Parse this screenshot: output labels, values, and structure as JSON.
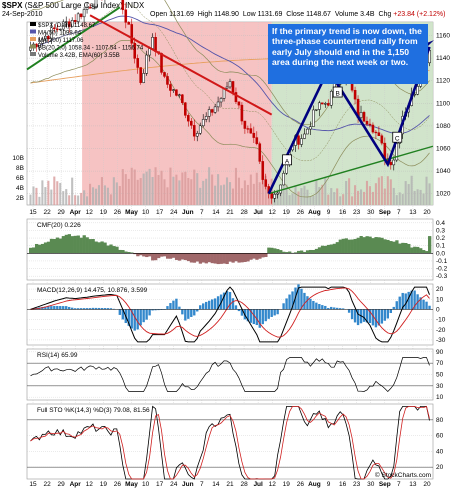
{
  "header": {
    "symbol": "$SPX",
    "name": "(S&P 500 Large Cap Index)",
    "exchange": "INDX",
    "date": "24-Sep-2010",
    "open_label": "Open",
    "open": "1131.69",
    "high_label": "High",
    "high": "1148.90",
    "low_label": "Low",
    "low": "1131.69",
    "close_label": "Close",
    "close": "1148.67",
    "volume_label": "Volume",
    "volume": "3.4B",
    "chg_label": "Chg",
    "chg": "+23.84 (+2.12%)"
  },
  "watermark": "© StockCharts.com",
  "annotation": "If the primary trend is now down, the three-phase countertrend rally from early July should end in the 1,150 area during the next week or two.",
  "legend": {
    "spx": "$SPX (Daily) 1148.67",
    "ma50": "MA(50) 1098.64",
    "ma200": "MA(200) 1117.06",
    "bb": "BB(20,2.0) 1058.34 - 1107.54 - 1156.74",
    "volume": "Volume 3.42B, EMA(60) 3.55B"
  },
  "wave_labels": [
    "A",
    "B",
    "C"
  ],
  "colors": {
    "up": "#000000",
    "down": "#c00000",
    "redzone": "#f5b8b8",
    "greenzone": "#c9dfc2",
    "trend": "#000080",
    "redline": "#d01818",
    "greenline": "#208020",
    "bb": "#8c8c5a",
    "ma200": "#e8a060",
    "ma50": "#5555aa",
    "cmf_pos": "#5a8a52",
    "cmf_neg": "#a0686a",
    "hist": "#3388cc",
    "annotation_bg": "#1f6fe0"
  },
  "chart_data": [
    {
      "type": "candlestick",
      "title": "$SPX (Daily)",
      "y_ticks": [
        1020,
        1040,
        1060,
        1080,
        1100,
        1120,
        1140,
        1160
      ],
      "ylim": [
        1010,
        1172
      ],
      "volume_ticks": [
        "2B",
        "4B",
        "6B",
        "8B",
        "10B"
      ],
      "x_labels": [
        "15",
        "22",
        "29",
        "Apr",
        "12",
        "19",
        "26",
        "May",
        "10",
        "17",
        "24",
        "Jun",
        "7",
        "14",
        "21",
        "28",
        "Jul",
        "12",
        "19",
        "26",
        "Aug",
        "9",
        "16",
        "23",
        "30",
        "Sep",
        "7",
        "13",
        "20"
      ],
      "month_labels": [
        "Apr",
        "May",
        "Jun",
        "Jul",
        "Aug",
        "Sep"
      ],
      "grid": true
    },
    {
      "type": "area",
      "title": "CMF(20) 0.226",
      "y_ticks": [
        "0.4",
        "0.3",
        "0.2",
        "0.1",
        "0.0",
        "-0.1",
        "-0.2",
        "-0.3"
      ],
      "ylim": [
        -0.35,
        0.45
      ],
      "value": 0.226
    },
    {
      "type": "line",
      "title": "MACD(12,26,9) 14.475, 10.876, 3.599",
      "series": [
        {
          "name": "MACD",
          "last": 14.475
        },
        {
          "name": "Signal",
          "last": 10.876
        },
        {
          "name": "Histogram",
          "last": 3.599
        }
      ],
      "y_ticks": [
        "20",
        "10",
        "0",
        "-10",
        "-20",
        "-30"
      ],
      "ylim": [
        -35,
        25
      ]
    },
    {
      "type": "line",
      "title": "RSI(14) 65.99",
      "value": 65.99,
      "y_ticks": [
        "90",
        "70",
        "50",
        "30",
        "10"
      ],
      "ylim": [
        5,
        95
      ]
    },
    {
      "type": "line",
      "title": "Full STO %K(14,3) %D(3) 79.08, 81.56",
      "series": [
        {
          "name": "%K",
          "last": 79.08
        },
        {
          "name": "%D",
          "last": 81.56
        }
      ],
      "y_ticks": [
        "80",
        "60",
        "40",
        "20"
      ],
      "ylim": [
        5,
        100
      ]
    }
  ]
}
